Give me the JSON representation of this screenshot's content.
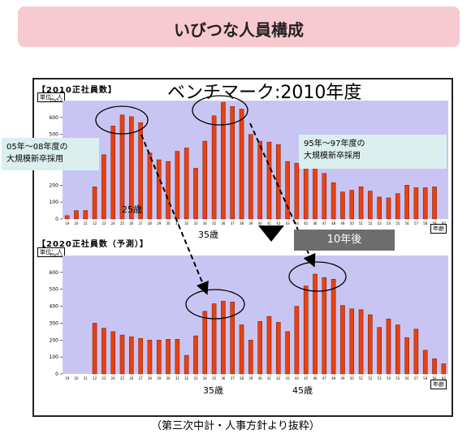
{
  "page": {
    "title": "いびつな人員構成",
    "benchmark_label": "ベンチマーク:2010年度",
    "footer": "（第三次中計・人事方針より抜粋）",
    "colors": {
      "banner": "#f7c9d0",
      "plot_bg": "#c9c5f3",
      "bar": "#e8410f",
      "bar_edge": "#7a1a00",
      "callout_bg": "#dcefef",
      "arrow_box": "#6e6e6e"
    }
  },
  "annotations": {
    "callout_left": [
      "05年～08年度の",
      "大規模新卒採用"
    ],
    "callout_right": [
      "95年～97年度の",
      "大規模新卒採用"
    ],
    "age_25_top": "25歳",
    "age_35_top": "35歳",
    "age_35_bottom": "35歳",
    "age_45_bottom": "45歳",
    "ten_years_later": "10年後",
    "arrow_icon": "down-triangle"
  },
  "chart_data": [
    {
      "type": "bar",
      "title": "【2010正社員数】",
      "unit_label": "単位：人",
      "xlabel": "年齢",
      "ylim": [
        0,
        700
      ],
      "yticks": [
        0,
        100,
        200,
        300,
        400,
        500,
        600,
        700
      ],
      "categories": [
        "19",
        "20",
        "21",
        "22",
        "23",
        "24",
        "25",
        "26",
        "27",
        "28",
        "29",
        "30",
        "31",
        "32",
        "33",
        "34",
        "35",
        "36",
        "37",
        "38",
        "39",
        "40",
        "41",
        "42",
        "43",
        "44",
        "45",
        "46",
        "47",
        "48",
        "49",
        "50",
        "51",
        "52",
        "53",
        "54",
        "55",
        "56",
        "57",
        "58",
        "59",
        "60"
      ],
      "values": [
        20,
        50,
        50,
        190,
        380,
        550,
        615,
        605,
        570,
        390,
        350,
        340,
        400,
        420,
        300,
        460,
        610,
        690,
        665,
        650,
        500,
        460,
        455,
        440,
        340,
        330,
        340,
        330,
        270,
        215,
        160,
        170,
        190,
        165,
        130,
        125,
        150,
        200,
        185,
        185,
        190,
        0
      ]
    },
    {
      "type": "bar",
      "title": "【2020正社員数（予測）】",
      "unit_label": "単位：人",
      "xlabel": "年齢",
      "ylim": [
        0,
        700
      ],
      "yticks": [
        0,
        100,
        200,
        300,
        400,
        500,
        600,
        700
      ],
      "categories": [
        "19",
        "20",
        "21",
        "22",
        "23",
        "24",
        "25",
        "26",
        "27",
        "28",
        "29",
        "30",
        "31",
        "32",
        "33",
        "34",
        "35",
        "36",
        "37",
        "38",
        "39",
        "40",
        "41",
        "42",
        "43",
        "44",
        "45",
        "46",
        "47",
        "48",
        "49",
        "50",
        "51",
        "52",
        "53",
        "54",
        "55",
        "56",
        "57",
        "58",
        "59",
        "60"
      ],
      "values": [
        0,
        0,
        0,
        300,
        270,
        250,
        230,
        220,
        210,
        200,
        200,
        205,
        205,
        110,
        225,
        370,
        415,
        430,
        425,
        290,
        200,
        310,
        340,
        305,
        250,
        400,
        520,
        590,
        570,
        560,
        405,
        385,
        380,
        350,
        275,
        325,
        290,
        215,
        265,
        140,
        90,
        60
      ]
    }
  ]
}
